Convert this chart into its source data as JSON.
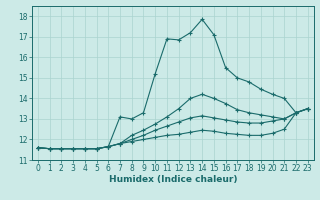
{
  "xlabel": "Humidex (Indice chaleur)",
  "x_values": [
    0,
    1,
    2,
    3,
    4,
    5,
    6,
    7,
    8,
    9,
    10,
    11,
    12,
    13,
    14,
    15,
    16,
    17,
    18,
    19,
    20,
    21,
    22,
    23
  ],
  "line1": [
    11.6,
    11.55,
    11.55,
    11.55,
    11.55,
    11.55,
    11.65,
    13.1,
    13.0,
    13.3,
    15.2,
    16.9,
    16.85,
    17.2,
    17.85,
    17.1,
    15.5,
    15.0,
    14.8,
    14.45,
    14.2,
    14.0,
    13.3,
    13.5
  ],
  "line2": [
    11.6,
    11.55,
    11.55,
    11.55,
    11.55,
    11.55,
    11.65,
    11.8,
    12.2,
    12.45,
    12.75,
    13.1,
    13.5,
    14.0,
    14.2,
    14.0,
    13.75,
    13.45,
    13.3,
    13.2,
    13.1,
    13.0,
    13.3,
    13.5
  ],
  "line3": [
    11.6,
    11.55,
    11.55,
    11.55,
    11.55,
    11.55,
    11.65,
    11.8,
    12.0,
    12.2,
    12.45,
    12.65,
    12.85,
    13.05,
    13.15,
    13.05,
    12.95,
    12.85,
    12.8,
    12.8,
    12.9,
    13.0,
    13.3,
    13.5
  ],
  "line4": [
    11.6,
    11.55,
    11.55,
    11.55,
    11.55,
    11.55,
    11.65,
    11.8,
    11.9,
    12.0,
    12.1,
    12.2,
    12.25,
    12.35,
    12.45,
    12.4,
    12.3,
    12.25,
    12.2,
    12.2,
    12.3,
    12.5,
    13.3,
    13.5
  ],
  "bg_color": "#cceae7",
  "grid_color": "#aad4d0",
  "line_color": "#1a6b6b",
  "ylim": [
    11.0,
    18.5
  ],
  "yticks": [
    11,
    12,
    13,
    14,
    15,
    16,
    17,
    18
  ],
  "xticks": [
    0,
    1,
    2,
    3,
    4,
    5,
    6,
    7,
    8,
    9,
    10,
    11,
    12,
    13,
    14,
    15,
    16,
    17,
    18,
    19,
    20,
    21,
    22,
    23
  ]
}
